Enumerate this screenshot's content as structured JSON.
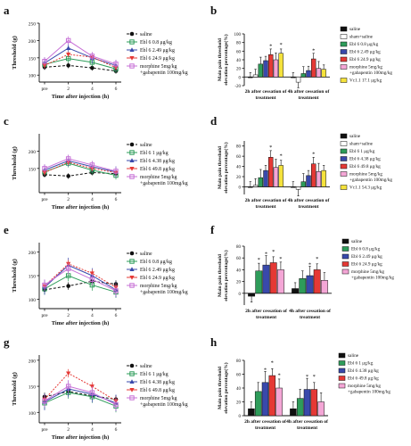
{
  "chart_data": [
    {
      "panel": "a",
      "type": "line",
      "xlabel": "Time after injection (h)",
      "ylabel": "Threshold (g)",
      "x": [
        "pre",
        "2",
        "4",
        "6"
      ],
      "xticks": [
        "pre",
        "2",
        "4",
        "6"
      ],
      "yticks": [
        "100",
        "150",
        "200",
        "250"
      ],
      "ylim": [
        80,
        250
      ],
      "series": [
        {
          "name": "saline",
          "color": "#111111",
          "values": [
            123,
            128,
            121,
            112
          ]
        },
        {
          "name": "Ebl 6 0.8 μg/kg",
          "color": "#2e9c5a",
          "values": [
            131,
            148,
            137,
            118
          ]
        },
        {
          "name": "Ebl 6 2.49 μg/kg",
          "color": "#3949ab",
          "values": [
            135,
            178,
            150,
            128
          ]
        },
        {
          "name": "Ebl 6 24.9 μg/kg",
          "color": "#e53935",
          "values": [
            128,
            160,
            152,
            122
          ]
        },
        {
          "name": "morphine 5mg/kg +gabapentin 100mg/kg",
          "color": "#c770d6",
          "values": [
            140,
            200,
            155,
            132
          ]
        }
      ]
    },
    {
      "panel": "b",
      "type": "bar",
      "ylabel": "Main pain threshold elevation percentage(%)",
      "yticks": [
        "-20",
        "0",
        "20",
        "40",
        "60",
        "80",
        "100"
      ],
      "ylim": [
        -20,
        100
      ],
      "groups": [
        "2h after cessation of treatment",
        "4h after cessation of treatment"
      ],
      "series": [
        {
          "name": "saline",
          "color": "#111111",
          "values": [
            0,
            0
          ]
        },
        {
          "name": "sham+saline",
          "color": "#ffffff",
          "values": [
            5,
            -12
          ]
        },
        {
          "name": "Ebl 6 0.8 μg/kg",
          "color": "#2e9c5a",
          "values": [
            30,
            8
          ]
        },
        {
          "name": "Ebl 6 2.49 μg/kg",
          "color": "#3949ab",
          "values": [
            38,
            15
          ]
        },
        {
          "name": "Ebl 6 24.9 μg/kg",
          "color": "#e53935",
          "values": [
            52,
            42
          ]
        },
        {
          "name": "morphine 5mg/kg +gabapentin 100mg/kg",
          "color": "#f4a6d6",
          "values": [
            40,
            20
          ]
        },
        {
          "name": "Vc1.1 17.1 μg/kg",
          "color": "#f5e23b",
          "values": [
            55,
            18
          ]
        }
      ],
      "annotations": [
        "*",
        "*",
        "*"
      ]
    },
    {
      "panel": "c",
      "type": "line",
      "xlabel": "Time after injection (h)",
      "ylabel": "Threshold (g)",
      "x": [
        "pre",
        "2",
        "4",
        "6"
      ],
      "xticks": [
        "pre",
        "2",
        "4",
        "6"
      ],
      "yticks": [
        "150",
        "200"
      ],
      "ylim": [
        80,
        250
      ],
      "series": [
        {
          "name": "saline",
          "color": "#111111",
          "values": [
            132,
            128,
            138,
            135
          ]
        },
        {
          "name": "Ebl 6 1 μg/kg",
          "color": "#2e9c5a",
          "values": [
            140,
            165,
            145,
            130
          ]
        },
        {
          "name": "Ebl 6 4.38 μg/kg",
          "color": "#3949ab",
          "values": [
            145,
            172,
            155,
            140
          ]
        },
        {
          "name": "Ebl 6 49.8 μg/kg",
          "color": "#e53935",
          "values": [
            138,
            168,
            150,
            138
          ]
        },
        {
          "name": "morphine 5mg/kg +gabapentin 100mg/kg",
          "color": "#c770d6",
          "values": [
            150,
            178,
            160,
            142
          ]
        }
      ]
    },
    {
      "panel": "d",
      "type": "bar",
      "ylabel": "Main pain threshold elevation percentage(%)",
      "yticks": [
        "0",
        "20",
        "40",
        "60",
        "80"
      ],
      "ylim": [
        -15,
        90
      ],
      "groups": [
        "2h after cessation of treatment",
        "4h after cessation of treatment"
      ],
      "series": [
        {
          "name": "saline",
          "color": "#111111",
          "values": [
            0,
            0
          ]
        },
        {
          "name": "sham+saline",
          "color": "#ffffff",
          "values": [
            3,
            -5
          ]
        },
        {
          "name": "Ebl 6 1 μg/kg",
          "color": "#2e9c5a",
          "values": [
            18,
            10
          ]
        },
        {
          "name": "Ebl 6 4.38 μg/kg",
          "color": "#3949ab",
          "values": [
            32,
            22
          ]
        },
        {
          "name": "Ebl 6 49.8 μg/kg",
          "color": "#e53935",
          "values": [
            58,
            45
          ]
        },
        {
          "name": "morphine 5mg/kg +gabapentin 100mg/kg",
          "color": "#f4a6d6",
          "values": [
            38,
            30
          ]
        },
        {
          "name": "Vc1.1 54.3 μg/kg",
          "color": "#f5e23b",
          "values": [
            42,
            32
          ]
        }
      ],
      "annotations": [
        "*",
        "*",
        "*"
      ]
    },
    {
      "panel": "e",
      "type": "line",
      "xlabel": "Time after injection (h)",
      "ylabel": "Threshold (g)",
      "x": [
        "pre",
        "2",
        "4",
        "6"
      ],
      "xticks": [
        "pre",
        "2",
        "4",
        "6"
      ],
      "yticks": [
        "100",
        "150",
        "200"
      ],
      "ylim": [
        80,
        220
      ],
      "series": [
        {
          "name": "saline",
          "color": "#111111",
          "values": [
            120,
            128,
            138,
            132
          ]
        },
        {
          "name": "Ebl 6 0.8 μg/kg",
          "color": "#2e9c5a",
          "values": [
            122,
            150,
            130,
            115
          ]
        },
        {
          "name": "Ebl 6 2.49 μg/kg",
          "color": "#3949ab",
          "values": [
            125,
            172,
            150,
            120
          ]
        },
        {
          "name": "Ebl 6 24.9 μg/kg",
          "color": "#e53935",
          "values": [
            128,
            175,
            155,
            125
          ]
        },
        {
          "name": "morphine 5mg/kg +gabapentin 100mg/kg",
          "color": "#c770d6",
          "values": [
            130,
            165,
            142,
            118
          ]
        }
      ]
    },
    {
      "panel": "f",
      "type": "bar",
      "ylabel": "Main pain threshold elevation percentage(%)",
      "yticks": [
        "0",
        "20",
        "40",
        "60",
        "80"
      ],
      "ylim": [
        -20,
        80
      ],
      "groups": [
        "2h after cessation of treatment",
        "4h after cessation of treatment"
      ],
      "series": [
        {
          "name": "saline",
          "color": "#111111",
          "values": [
            -5,
            8
          ]
        },
        {
          "name": "Ebl 6 0.8 μg/kg",
          "color": "#2e9c5a",
          "values": [
            38,
            25
          ]
        },
        {
          "name": "Ebl 6 2.49 μg/kg",
          "color": "#3949ab",
          "values": [
            48,
            30
          ]
        },
        {
          "name": "Ebl 6 24.9 μg/kg",
          "color": "#e53935",
          "values": [
            52,
            40
          ]
        },
        {
          "name": "morphine 5mg/kg +gabapentin 100mg/kg",
          "color": "#f4a6d6",
          "values": [
            40,
            22
          ]
        }
      ],
      "annotations": [
        "*",
        "*",
        "*",
        "*",
        "*",
        "*"
      ]
    },
    {
      "panel": "g",
      "type": "line",
      "xlabel": "Time after injection (h)",
      "ylabel": "Threshold (g)",
      "x": [
        "pre",
        "2",
        "4",
        "6"
      ],
      "xticks": [
        "pre",
        "2",
        "4",
        "6"
      ],
      "yticks": [
        "100",
        "150",
        "200"
      ],
      "ylim": [
        80,
        210
      ],
      "series": [
        {
          "name": "saline",
          "color": "#111111",
          "values": [
            130,
            140,
            132,
            125
          ]
        },
        {
          "name": "Ebl 6 1 μg/kg",
          "color": "#2e9c5a",
          "values": [
            118,
            138,
            130,
            112
          ]
        },
        {
          "name": "Ebl 6 4.38 μg/kg",
          "color": "#3949ab",
          "values": [
            120,
            145,
            135,
            118
          ]
        },
        {
          "name": "Ebl 6 49.8 μg/kg",
          "color": "#e53935",
          "values": [
            125,
            175,
            150,
            122
          ]
        },
        {
          "name": "morphine 5mg/kg +gabapentin 100mg/kg",
          "color": "#c770d6",
          "values": [
            122,
            150,
            138,
            115
          ]
        }
      ]
    },
    {
      "panel": "h",
      "type": "bar",
      "ylabel": "Main pain threshold elevation percentage(%)",
      "yticks": [
        "0",
        "20",
        "40",
        "60",
        "80"
      ],
      "ylim": [
        0,
        80
      ],
      "groups": [
        "2h after cessation of treatment",
        "4h after cessation of treatment"
      ],
      "series": [
        {
          "name": "saline",
          "color": "#111111",
          "values": [
            10,
            10
          ]
        },
        {
          "name": "Ebl 6 1 μg/kg",
          "color": "#2e9c5a",
          "values": [
            35,
            25
          ]
        },
        {
          "name": "Ebl 6 4.38 μg/kg",
          "color": "#3949ab",
          "values": [
            48,
            38
          ]
        },
        {
          "name": "Ebl 6 49.8 μg/kg",
          "color": "#e53935",
          "values": [
            58,
            38
          ]
        },
        {
          "name": "morphine 5mg/kg +gabapentin 100mg/kg",
          "color": "#f4a6d6",
          "values": [
            40,
            20
          ]
        }
      ],
      "annotations": [
        "*",
        "*",
        "*",
        "*",
        "*"
      ]
    }
  ]
}
